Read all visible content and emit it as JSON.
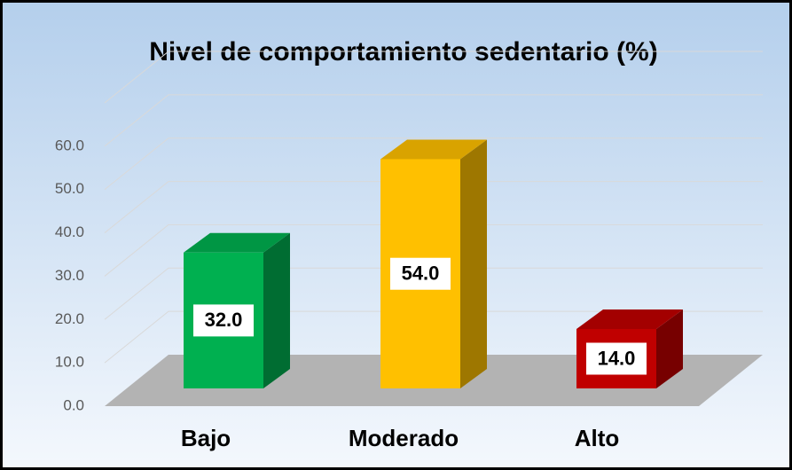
{
  "chart_data": {
    "type": "bar3d",
    "title": "Nivel de comportamiento sedentario (%)",
    "categories": [
      "Bajo",
      "Moderado",
      "Alto"
    ],
    "values": [
      32,
      54,
      14
    ],
    "value_labels": [
      "32.0",
      "54.0",
      "14.0"
    ],
    "colors": [
      "#00b050",
      "#ffc000",
      "#c00000"
    ],
    "ylim": [
      0,
      70
    ],
    "yticks": [
      {
        "value": 0,
        "label": "0.0"
      },
      {
        "value": 10,
        "label": "10.0"
      },
      {
        "value": 20,
        "label": "20.0"
      },
      {
        "value": 30,
        "label": "30.0"
      },
      {
        "value": 40,
        "label": "40.0"
      },
      {
        "value": 50,
        "label": "50.0"
      },
      {
        "value": 60,
        "label": "60.0"
      }
    ],
    "grid": true
  }
}
